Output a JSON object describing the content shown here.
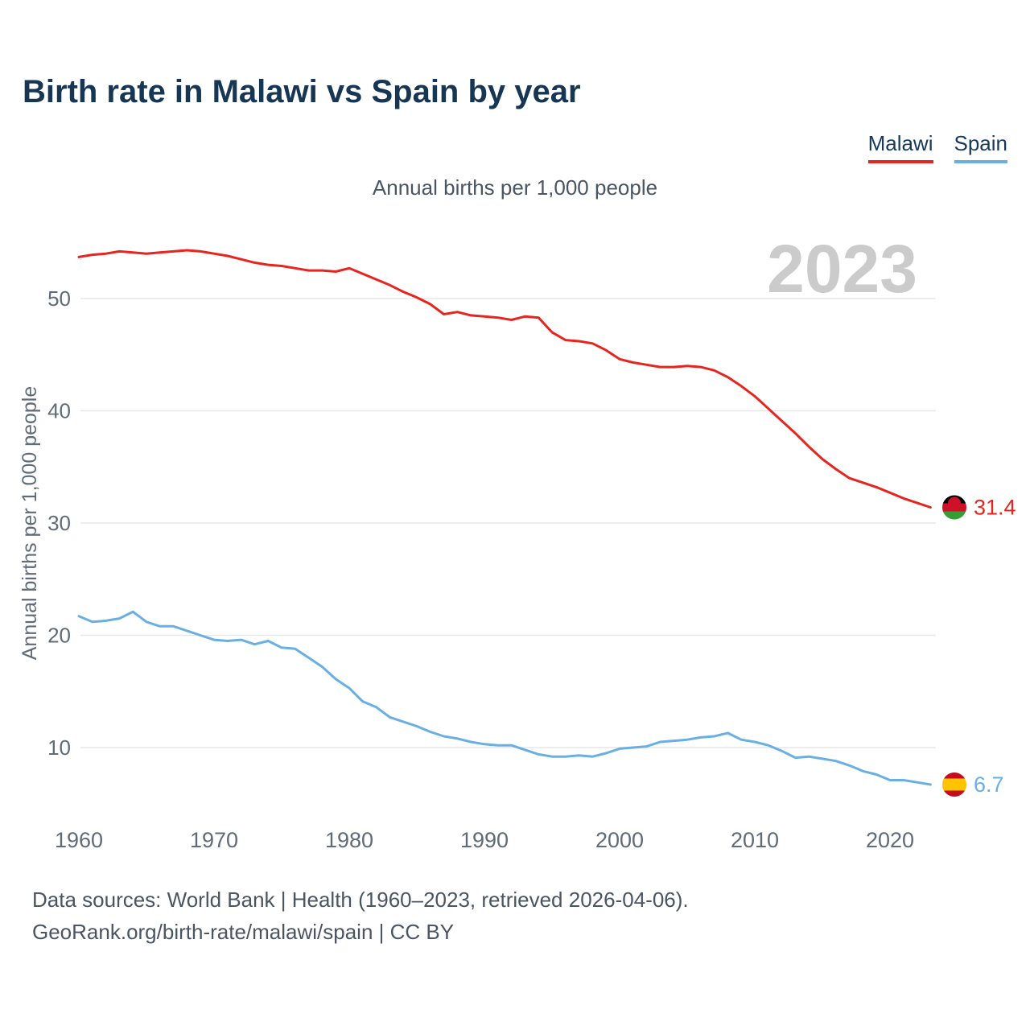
{
  "page": {
    "title": "Birth rate in Malawi vs Spain by year",
    "subtitle": "Annual births per 1,000 people",
    "watermark": "2023",
    "footer_line1": "Data sources: World Bank | Health (1960–2023, retrieved 2026-04-06).",
    "footer_line2": "GeoRank.org/birth-rate/malawi/spain | CC BY"
  },
  "legend": {
    "malawi_label": "Malawi",
    "spain_label": "Spain"
  },
  "colors": {
    "malawi": "#e8241f",
    "spain": "#6aafe3",
    "title": "#173654",
    "grid": "#e7e7e7",
    "axis_text": "#5f6b78",
    "watermark": "#cbcbcb",
    "malawi_flag_black": "#000000",
    "malawi_flag_red": "#ce1126",
    "malawi_flag_green": "#339e35",
    "spain_flag_red": "#c60b1e",
    "spain_flag_yellow": "#ffc400"
  },
  "end_labels": {
    "malawi_value": "31.4",
    "spain_value": "6.7"
  },
  "chart_data": {
    "type": "line",
    "title": "Birth rate in Malawi vs Spain by year",
    "ylabel": "Annual births per 1,000 people",
    "xlabel": "",
    "legend_position": "top-right",
    "grid": "horizontal",
    "ylim": [
      5,
      57
    ],
    "xlim": [
      1960,
      2023
    ],
    "y_ticks": [
      10,
      20,
      30,
      40,
      50
    ],
    "x_ticks": [
      1960,
      1970,
      1980,
      1990,
      2000,
      2010,
      2020
    ],
    "x": [
      1960,
      1961,
      1962,
      1963,
      1964,
      1965,
      1966,
      1967,
      1968,
      1969,
      1970,
      1971,
      1972,
      1973,
      1974,
      1975,
      1976,
      1977,
      1978,
      1979,
      1980,
      1981,
      1982,
      1983,
      1984,
      1985,
      1986,
      1987,
      1988,
      1989,
      1990,
      1991,
      1992,
      1993,
      1994,
      1995,
      1996,
      1997,
      1998,
      1999,
      2000,
      2001,
      2002,
      2003,
      2004,
      2005,
      2006,
      2007,
      2008,
      2009,
      2010,
      2011,
      2012,
      2013,
      2014,
      2015,
      2016,
      2017,
      2018,
      2019,
      2020,
      2021,
      2022,
      2023
    ],
    "series": [
      {
        "name": "Malawi",
        "color": "#e8241f",
        "end_label": "31.4",
        "values": [
          53.7,
          53.9,
          54.0,
          54.2,
          54.1,
          54.0,
          54.1,
          54.2,
          54.3,
          54.2,
          54.0,
          53.8,
          53.5,
          53.2,
          53.0,
          52.9,
          52.7,
          52.5,
          52.5,
          52.4,
          52.7,
          52.2,
          51.7,
          51.2,
          50.6,
          50.1,
          49.5,
          48.6,
          48.8,
          48.5,
          48.4,
          48.3,
          48.1,
          48.4,
          48.3,
          47.0,
          46.3,
          46.2,
          46.0,
          45.4,
          44.6,
          44.3,
          44.1,
          43.9,
          43.9,
          44.0,
          43.9,
          43.6,
          43.0,
          42.2,
          41.3,
          40.2,
          39.1,
          38.0,
          36.8,
          35.7,
          34.8,
          34.0,
          33.6,
          33.2,
          32.7,
          32.2,
          31.8,
          31.4
        ]
      },
      {
        "name": "Spain",
        "color": "#6aafe3",
        "end_label": "6.7",
        "values": [
          21.7,
          21.2,
          21.3,
          21.5,
          22.1,
          21.2,
          20.8,
          20.8,
          20.4,
          20.0,
          19.6,
          19.5,
          19.6,
          19.2,
          19.5,
          18.9,
          18.8,
          18.0,
          17.2,
          16.1,
          15.3,
          14.1,
          13.6,
          12.7,
          12.3,
          11.9,
          11.4,
          11.0,
          10.8,
          10.5,
          10.3,
          10.2,
          10.2,
          9.8,
          9.4,
          9.2,
          9.2,
          9.3,
          9.2,
          9.5,
          9.9,
          10.0,
          10.1,
          10.5,
          10.6,
          10.7,
          10.9,
          11.0,
          11.3,
          10.7,
          10.5,
          10.2,
          9.7,
          9.1,
          9.2,
          9.0,
          8.8,
          8.4,
          7.9,
          7.6,
          7.1,
          7.1,
          6.9,
          6.7
        ]
      }
    ]
  }
}
